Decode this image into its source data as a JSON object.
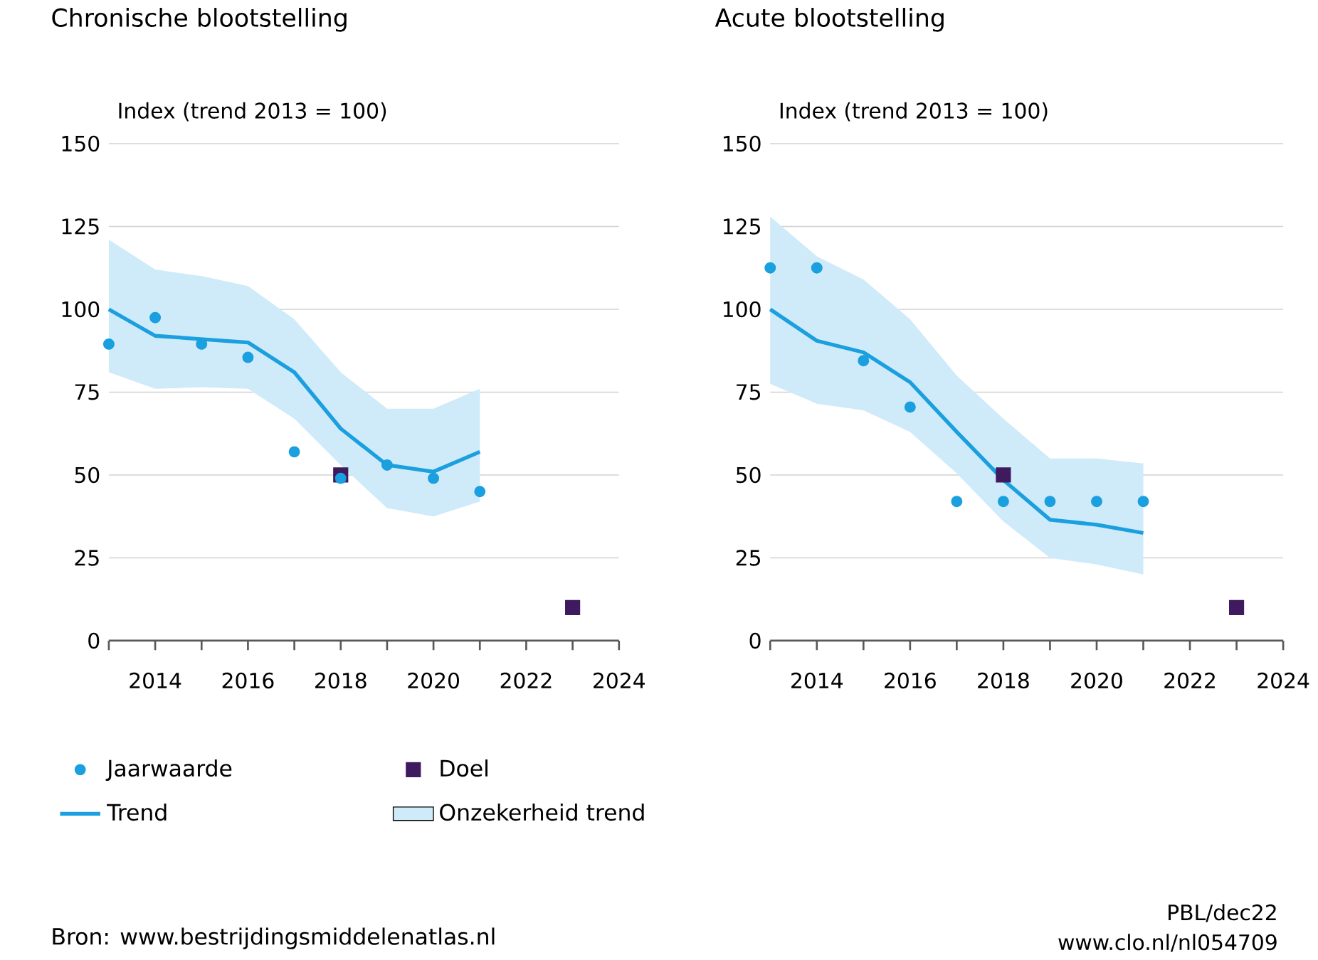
{
  "chart_data": [
    {
      "type": "line",
      "title": "Chronische blootstelling",
      "ylabel": "Index (trend 2013 = 100)",
      "xlim": [
        2013,
        2024
      ],
      "xticks": [
        {
          "value": 2013,
          "label": null
        },
        2014,
        {
          "value": 2015,
          "label": null
        },
        2016,
        {
          "value": 2017,
          "label": null
        },
        2018,
        {
          "value": 2019,
          "label": null
        },
        2020,
        {
          "value": 2021,
          "label": null
        },
        2022,
        {
          "value": 2023,
          "label": null
        },
        2024
      ],
      "ylim": [
        0,
        150
      ],
      "yticks": [
        0,
        25,
        50,
        75,
        100,
        125,
        150
      ],
      "grid": "y",
      "legend": "bottom",
      "series": [
        {
          "name": "Jaarwaarde",
          "type": "scatter",
          "marker": "circle",
          "color": "#1a9fdf",
          "x": [
            2013,
            2014,
            2015,
            2016,
            2017,
            2018,
            2019,
            2020,
            2021
          ],
          "values": [
            89.5,
            97.5,
            89.5,
            85.5,
            57,
            49,
            53,
            49,
            45
          ]
        },
        {
          "name": "Doel",
          "type": "scatter",
          "marker": "square",
          "color": "#3f1a5e",
          "x": [
            2018,
            2023
          ],
          "values": [
            50,
            10
          ]
        },
        {
          "name": "Trend",
          "line_style": "solid",
          "color": "#1a9fdf",
          "x": [
            2013,
            2014,
            2015,
            2016,
            2017,
            2018,
            2019,
            2020,
            2021
          ],
          "values": [
            100,
            92,
            91,
            90,
            81,
            64,
            53,
            51,
            57
          ],
          "lower": [
            81,
            76,
            76.5,
            76,
            67,
            53,
            40,
            37.5,
            42
          ],
          "upper": [
            121,
            112,
            110,
            107,
            97,
            81,
            70,
            70,
            76
          ]
        },
        {
          "name": "Onzekerheid trend",
          "type": "area",
          "color": "#cfeaf9"
        }
      ],
      "annotations": [
        "Bron: www.bestrijdingsmiddelenatlas.nl"
      ]
    },
    {
      "type": "line",
      "title": "Acute blootstelling",
      "ylabel": "Index (trend 2013 = 100)",
      "xlim": [
        2013,
        2024
      ],
      "xticks": [
        {
          "value": 2013,
          "label": null
        },
        2014,
        {
          "value": 2015,
          "label": null
        },
        2016,
        {
          "value": 2017,
          "label": null
        },
        2018,
        {
          "value": 2019,
          "label": null
        },
        2020,
        {
          "value": 2021,
          "label": null
        },
        2022,
        {
          "value": 2023,
          "label": null
        },
        2024
      ],
      "ylim": [
        0,
        150
      ],
      "yticks": [
        0,
        25,
        50,
        75,
        100,
        125,
        150
      ],
      "grid": "y",
      "series": [
        {
          "type": "scatter",
          "marker": "circle",
          "color": "#1a9fdf",
          "x": [
            2013,
            2014,
            2015,
            2016,
            2017,
            2018,
            2019,
            2020,
            2021
          ],
          "values": [
            112.5,
            112.5,
            84.5,
            70.5,
            42,
            42,
            42,
            42,
            42
          ]
        },
        {
          "type": "scatter",
          "marker": "square",
          "color": "#3f1a5e",
          "x": [
            2018,
            2023
          ],
          "values": [
            50,
            10
          ]
        },
        {
          "line_style": "solid",
          "color": "#1a9fdf",
          "x": [
            2013,
            2014,
            2015,
            2016,
            2017,
            2018,
            2019,
            2020,
            2021
          ],
          "values": [
            100,
            90.5,
            87,
            78,
            63,
            48.5,
            36.5,
            35,
            32.5
          ],
          "lower": [
            77.5,
            71.5,
            69.5,
            63,
            50.5,
            36,
            25,
            23,
            20
          ],
          "upper": [
            128,
            116,
            109,
            97,
            80,
            67,
            55,
            55,
            53.5
          ]
        },
        {
          "type": "area",
          "color": "#cfeaf9"
        }
      ],
      "annotations": [
        "PBL/dec22",
        "www.clo.nl/nl054709"
      ]
    }
  ]
}
